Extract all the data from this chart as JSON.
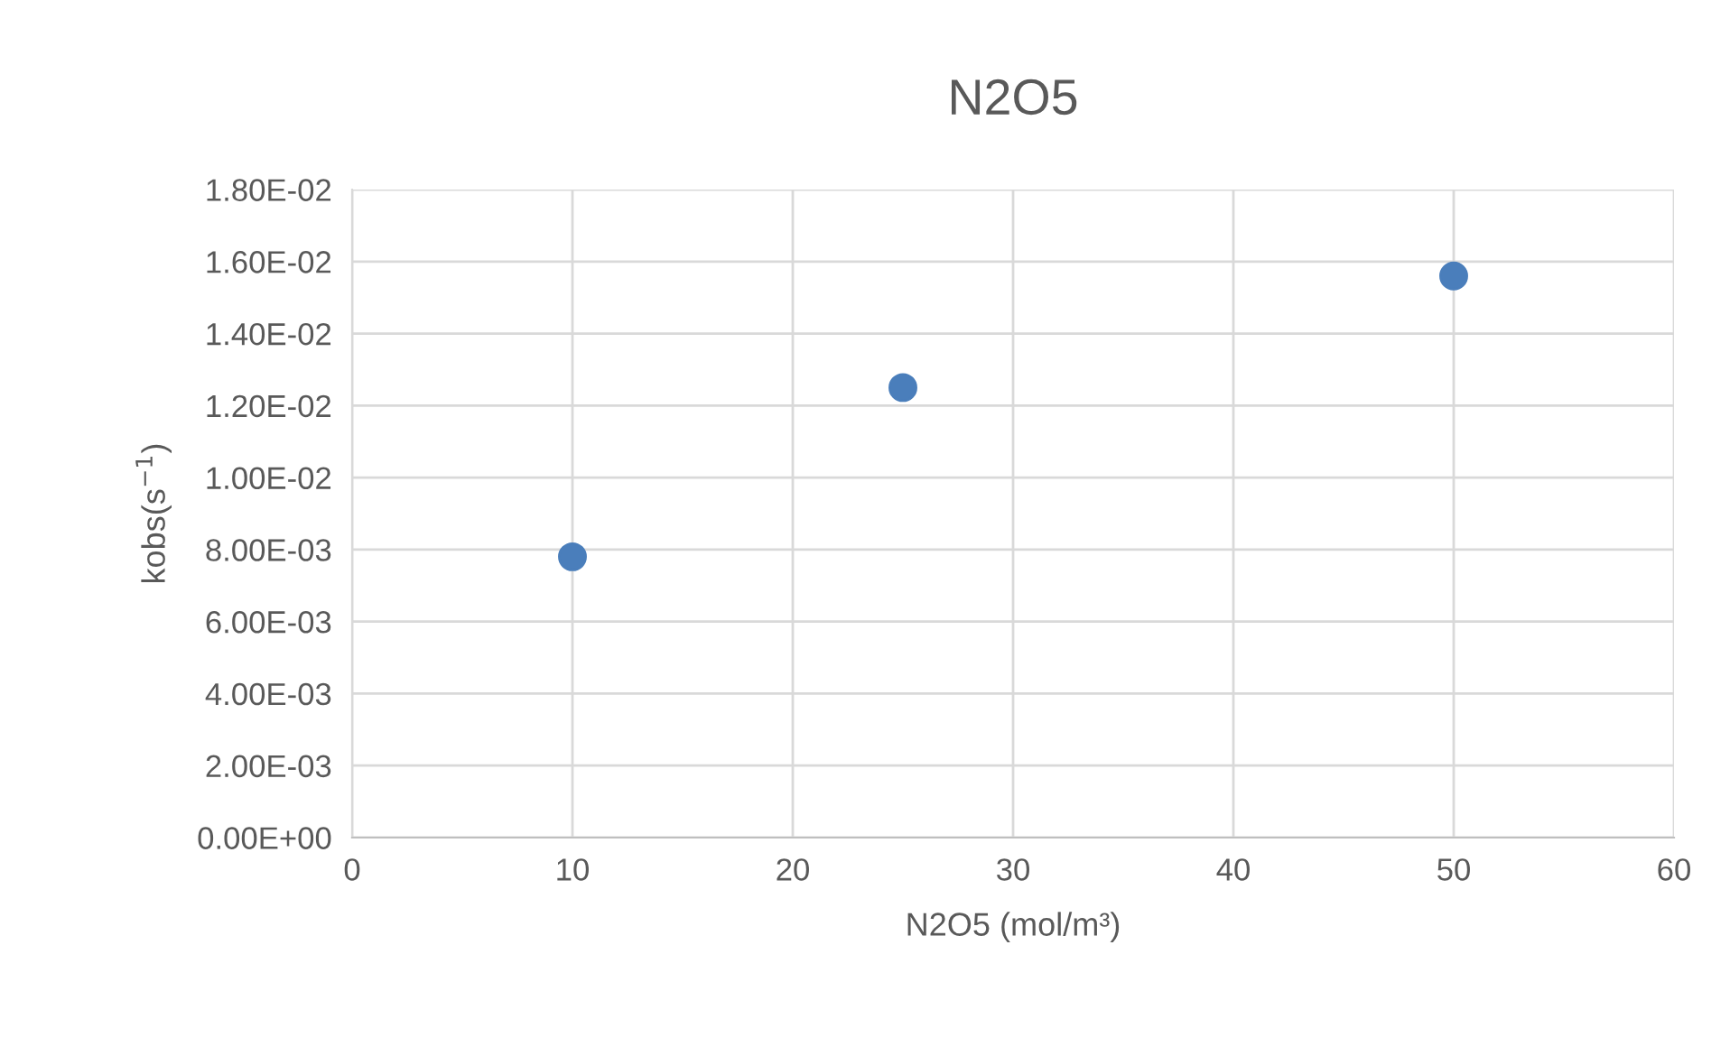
{
  "chart_data": {
    "type": "scatter",
    "title": "N2O5",
    "xlabel": "N2O5 (mol/m³)",
    "ylabel": "kobs(s$^{−1}$)",
    "x": [
      10,
      25,
      50
    ],
    "series": [
      {
        "color": "#4a7ebb",
        "values": [
          0.0078,
          0.0125,
          0.0156
        ]
      }
    ],
    "xlim": [
      0,
      60
    ],
    "xticks": [
      0,
      10,
      20,
      30,
      40,
      50,
      60
    ],
    "ylim": [
      0,
      0.018
    ],
    "yticks": [
      {
        "value": 0,
        "label": "0.00E+00"
      },
      {
        "value": 0.002,
        "label": "2.00E-03"
      },
      {
        "value": 0.004,
        "label": "4.00E-03"
      },
      {
        "value": 0.006,
        "label": "6.00E-03"
      },
      {
        "value": 0.008,
        "label": "8.00E-03"
      },
      {
        "value": 0.01,
        "label": "1.00E-02"
      },
      {
        "value": 0.012,
        "label": "1.20E-02"
      },
      {
        "value": 0.014,
        "label": "1.40E-02"
      },
      {
        "value": 0.016,
        "label": "1.60E-02"
      },
      {
        "value": 0.018,
        "label": "1.80E-02"
      }
    ],
    "grid": true,
    "marker": "circle",
    "legend": false
  }
}
